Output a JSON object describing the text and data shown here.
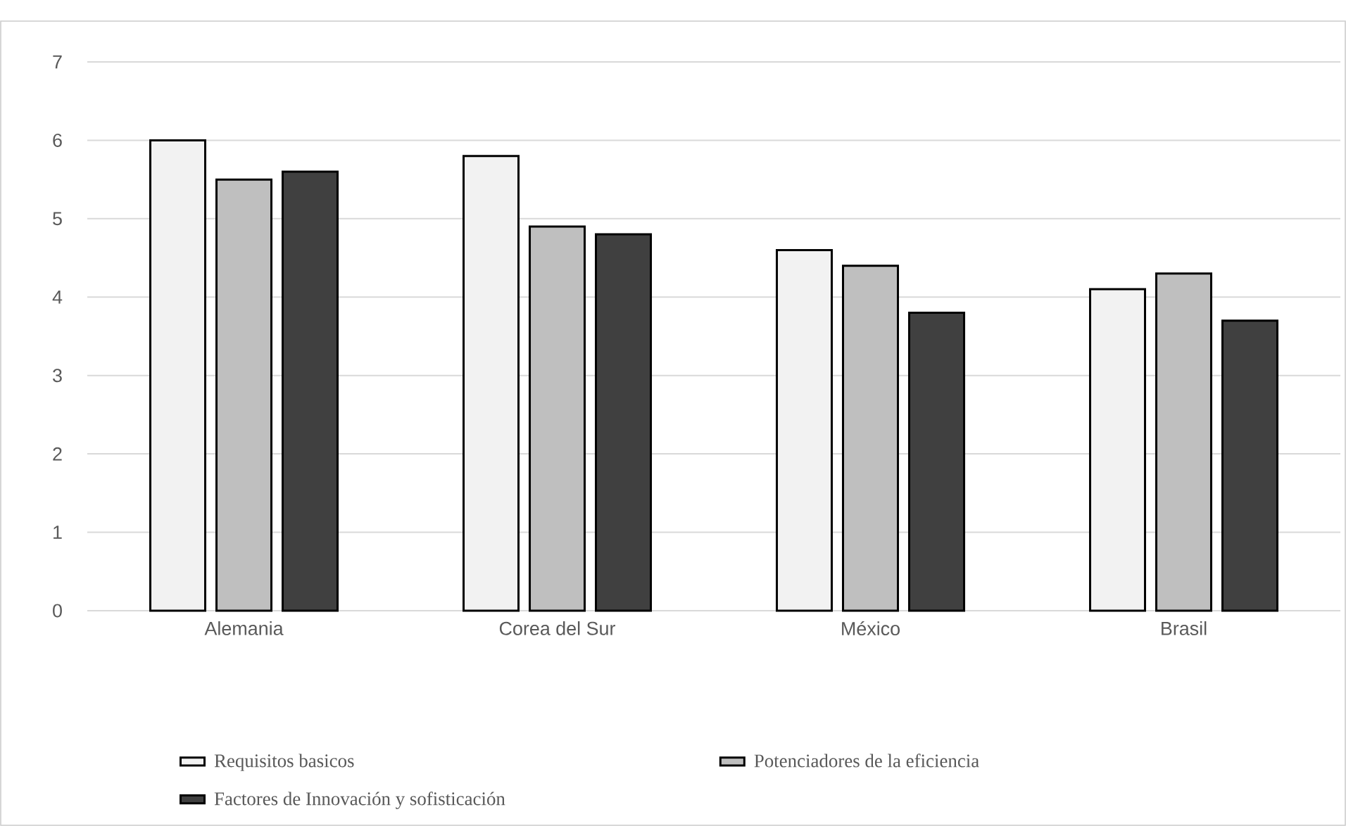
{
  "chart_data": {
    "type": "bar",
    "categories": [
      "Alemania",
      "Corea del Sur",
      "México",
      "Brasil"
    ],
    "series": [
      {
        "name": "Requisitos basicos",
        "color": "#f2f2f2",
        "values": [
          6.0,
          5.8,
          4.6,
          4.1
        ]
      },
      {
        "name": "Potenciadores de la eficiencia",
        "color": "#bfbfbf",
        "values": [
          5.5,
          4.9,
          4.4,
          4.3
        ]
      },
      {
        "name": "Factores de Innovación y sofisticación",
        "color": "#404040",
        "values": [
          5.6,
          4.8,
          3.8,
          3.7
        ]
      }
    ],
    "ylim": [
      0,
      7
    ],
    "yticks": [
      0,
      1,
      2,
      3,
      4,
      5,
      6,
      7
    ],
    "grid": "y",
    "legend": "bottom"
  }
}
